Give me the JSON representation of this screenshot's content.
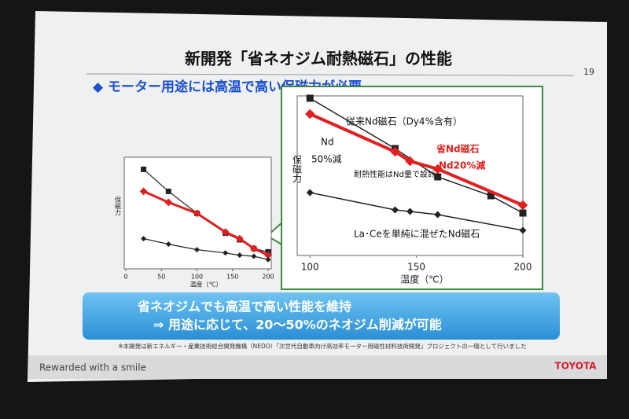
{
  "slide": {
    "title": "新開発「省ネオジム耐熱磁石」の性能",
    "page_number": "19",
    "subtitle": "◆ モーター用途には高温で高い保磁力が必要",
    "banner": {
      "line1": "省ネオジムでも高温で高い性能を維持",
      "line2": "⇒ 用途に応じて、20～50%のネオジム削減が可能"
    },
    "footnote": "※本開発は新エネルギー・産業技術総合開発機構（NEDO）「次世代自動車向け高効率モーター用磁性材料技術開発」プロジェクトの一環として行いました",
    "footer": {
      "tagline": "Rewarded with a smile",
      "brand": "TOYOTA"
    }
  },
  "chart_data": [
    {
      "type": "line",
      "x_label": "温度（℃）",
      "y_label": "保磁力",
      "xlim": [
        0,
        200
      ],
      "xticks": [
        0,
        50,
        100,
        150,
        200
      ],
      "ylim": [
        0,
        100
      ],
      "series": [
        {
          "color": "#222222",
          "marker": "square",
          "x": [
            25,
            60,
            100,
            140,
            160,
            180,
            200
          ],
          "values": [
            89,
            69,
            49,
            31,
            25,
            17,
            14
          ]
        },
        {
          "color": "#e02020",
          "marker": "diamond",
          "x": [
            25,
            60,
            100,
            140,
            160,
            180,
            200
          ],
          "values": [
            69,
            59,
            49,
            32,
            26,
            17,
            11
          ]
        },
        {
          "color": "#222222",
          "marker": "diamond",
          "x": [
            25,
            60,
            100,
            140,
            160,
            180,
            200
          ],
          "values": [
            26,
            21,
            16,
            13,
            11,
            10,
            7
          ]
        }
      ]
    },
    {
      "type": "line",
      "x_label": "温度（℃）",
      "y_label": "保磁力",
      "xlim": [
        94,
        200
      ],
      "xticks": [
        100,
        150,
        200
      ],
      "ylim": [
        0,
        100
      ],
      "series": [
        {
          "name": "従来Nd磁石（Dy4%含有）",
          "color": "#222222",
          "marker": "square",
          "x": [
            100,
            140,
            160,
            185,
            200
          ],
          "values": [
            100,
            68,
            50,
            38,
            27
          ]
        },
        {
          "color": "#e02020",
          "marker": "diamond",
          "x": [
            100,
            140,
            147,
            160,
            200
          ],
          "values": [
            90,
            66,
            60,
            55,
            32
          ]
        },
        {
          "name": "La･Ceを単純に混ぜたNd磁石",
          "color": "#222222",
          "marker": "diamond",
          "x": [
            100,
            140,
            147,
            160,
            200
          ],
          "values": [
            40,
            29,
            28,
            26,
            16
          ]
        }
      ],
      "annotations": [
        "省Nd磁石",
        "Nd20%減",
        "Nd",
        "50%減",
        "耐熱性能はNd量で設計"
      ]
    }
  ]
}
